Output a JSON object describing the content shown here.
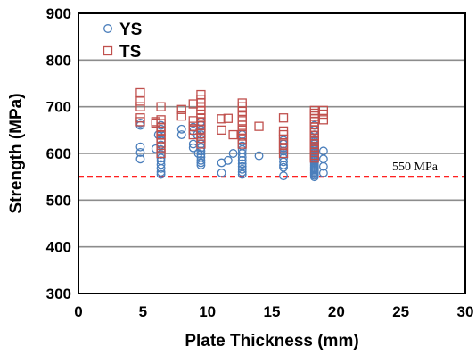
{
  "chart_data": {
    "type": "scatter",
    "xlabel": "Plate Thickness (mm)",
    "ylabel": "Strength (MPa)",
    "xlim": [
      0,
      30
    ],
    "ylim": [
      300,
      900
    ],
    "xticks": [
      "0",
      "5",
      "10",
      "15",
      "20",
      "25",
      "30"
    ],
    "yticks": [
      "300",
      "400",
      "500",
      "600",
      "700",
      "800",
      "900"
    ],
    "grid": "horizontal",
    "legend_position": "top-left",
    "reference_line": {
      "y": 550,
      "label": "550 MPa",
      "color": "#ff0000"
    },
    "series": [
      {
        "name": "YS",
        "marker": "circle",
        "color": "#4a7ebb",
        "points": [
          [
            4.8,
            588
          ],
          [
            4.8,
            602
          ],
          [
            4.8,
            614
          ],
          [
            4.8,
            660
          ],
          [
            4.8,
            665
          ],
          [
            6.4,
            555
          ],
          [
            6.4,
            560
          ],
          [
            6.4,
            568
          ],
          [
            6.4,
            576
          ],
          [
            6.4,
            584
          ],
          [
            6.4,
            590
          ],
          [
            6.4,
            598
          ],
          [
            6.4,
            608
          ],
          [
            6.4,
            618
          ],
          [
            6.4,
            628
          ],
          [
            6.4,
            640
          ],
          [
            6.4,
            652
          ],
          [
            6.4,
            660
          ],
          [
            6.0,
            610
          ],
          [
            6.2,
            640
          ],
          [
            8.0,
            640
          ],
          [
            8.0,
            652
          ],
          [
            8.9,
            612
          ],
          [
            8.9,
            620
          ],
          [
            8.9,
            648
          ],
          [
            8.9,
            656
          ],
          [
            9.5,
            575
          ],
          [
            9.5,
            580
          ],
          [
            9.5,
            585
          ],
          [
            9.5,
            592
          ],
          [
            9.5,
            598
          ],
          [
            9.5,
            605
          ],
          [
            9.5,
            612
          ],
          [
            9.5,
            620
          ],
          [
            9.5,
            630
          ],
          [
            9.5,
            640
          ],
          [
            9.5,
            650
          ],
          [
            9.5,
            660
          ],
          [
            9.5,
            668
          ],
          [
            9.3,
            600
          ],
          [
            9.2,
            640
          ],
          [
            11.1,
            558
          ],
          [
            11.1,
            580
          ],
          [
            11.6,
            585
          ],
          [
            12.0,
            600
          ],
          [
            12.7,
            555
          ],
          [
            12.7,
            560
          ],
          [
            12.7,
            566
          ],
          [
            12.7,
            572
          ],
          [
            12.7,
            578
          ],
          [
            12.7,
            585
          ],
          [
            12.7,
            592
          ],
          [
            12.7,
            600
          ],
          [
            12.7,
            608
          ],
          [
            12.7,
            616
          ],
          [
            12.7,
            625
          ],
          [
            12.7,
            640
          ],
          [
            14.0,
            595
          ],
          [
            15.9,
            552
          ],
          [
            15.9,
            570
          ],
          [
            15.9,
            575
          ],
          [
            15.9,
            582
          ],
          [
            15.9,
            590
          ],
          [
            15.9,
            598
          ],
          [
            15.9,
            605
          ],
          [
            15.9,
            612
          ],
          [
            15.9,
            620
          ],
          [
            15.9,
            628
          ],
          [
            18.3,
            550
          ],
          [
            18.3,
            553
          ],
          [
            18.3,
            556
          ],
          [
            18.3,
            559
          ],
          [
            18.3,
            562
          ],
          [
            18.3,
            565
          ],
          [
            18.3,
            568
          ],
          [
            18.3,
            571
          ],
          [
            18.3,
            574
          ],
          [
            18.3,
            577
          ],
          [
            18.3,
            580
          ],
          [
            18.3,
            583
          ],
          [
            18.3,
            586
          ],
          [
            18.3,
            589
          ],
          [
            18.3,
            592
          ],
          [
            18.3,
            595
          ],
          [
            18.3,
            598
          ],
          [
            18.3,
            601
          ],
          [
            18.3,
            604
          ],
          [
            18.3,
            607
          ],
          [
            18.3,
            610
          ],
          [
            18.3,
            613
          ],
          [
            18.3,
            616
          ],
          [
            18.3,
            620
          ],
          [
            18.3,
            625
          ],
          [
            18.3,
            630
          ],
          [
            18.3,
            640
          ],
          [
            18.3,
            650
          ],
          [
            18.3,
            660
          ],
          [
            19.0,
            558
          ],
          [
            19.0,
            572
          ],
          [
            19.0,
            588
          ],
          [
            19.0,
            605
          ]
        ]
      },
      {
        "name": "TS",
        "marker": "square",
        "color": "#c0504d",
        "points": [
          [
            4.8,
            668
          ],
          [
            4.8,
            676
          ],
          [
            4.8,
            700
          ],
          [
            4.8,
            712
          ],
          [
            4.8,
            730
          ],
          [
            6.0,
            665
          ],
          [
            6.0,
            668
          ],
          [
            6.4,
            600
          ],
          [
            6.4,
            612
          ],
          [
            6.4,
            622
          ],
          [
            6.4,
            632
          ],
          [
            6.4,
            640
          ],
          [
            6.4,
            648
          ],
          [
            6.4,
            656
          ],
          [
            6.4,
            664
          ],
          [
            6.4,
            672
          ],
          [
            6.4,
            700
          ],
          [
            8.0,
            680
          ],
          [
            8.0,
            694
          ],
          [
            8.9,
            640
          ],
          [
            8.9,
            650
          ],
          [
            8.9,
            658
          ],
          [
            8.9,
            670
          ],
          [
            8.9,
            706
          ],
          [
            9.5,
            620
          ],
          [
            9.5,
            632
          ],
          [
            9.5,
            642
          ],
          [
            9.5,
            652
          ],
          [
            9.5,
            660
          ],
          [
            9.5,
            668
          ],
          [
            9.5,
            676
          ],
          [
            9.5,
            684
          ],
          [
            9.5,
            692
          ],
          [
            9.5,
            700
          ],
          [
            9.5,
            708
          ],
          [
            9.5,
            716
          ],
          [
            9.5,
            726
          ],
          [
            11.1,
            650
          ],
          [
            11.1,
            674
          ],
          [
            11.6,
            675
          ],
          [
            12.0,
            640
          ],
          [
            12.7,
            620
          ],
          [
            12.7,
            630
          ],
          [
            12.7,
            640
          ],
          [
            12.7,
            650
          ],
          [
            12.7,
            660
          ],
          [
            12.7,
            670
          ],
          [
            12.7,
            680
          ],
          [
            12.7,
            690
          ],
          [
            12.7,
            700
          ],
          [
            12.7,
            708
          ],
          [
            14.0,
            658
          ],
          [
            15.9,
            600
          ],
          [
            15.9,
            610
          ],
          [
            15.9,
            620
          ],
          [
            15.9,
            630
          ],
          [
            15.9,
            640
          ],
          [
            15.9,
            648
          ],
          [
            15.9,
            676
          ],
          [
            18.3,
            590
          ],
          [
            18.3,
            596
          ],
          [
            18.3,
            602
          ],
          [
            18.3,
            608
          ],
          [
            18.3,
            614
          ],
          [
            18.3,
            620
          ],
          [
            18.3,
            626
          ],
          [
            18.3,
            632
          ],
          [
            18.3,
            638
          ],
          [
            18.3,
            644
          ],
          [
            18.3,
            650
          ],
          [
            18.3,
            656
          ],
          [
            18.3,
            662
          ],
          [
            18.3,
            668
          ],
          [
            18.3,
            674
          ],
          [
            18.3,
            680
          ],
          [
            18.3,
            686
          ],
          [
            18.3,
            692
          ],
          [
            19.0,
            672
          ],
          [
            19.0,
            684
          ],
          [
            19.0,
            692
          ]
        ]
      }
    ]
  }
}
